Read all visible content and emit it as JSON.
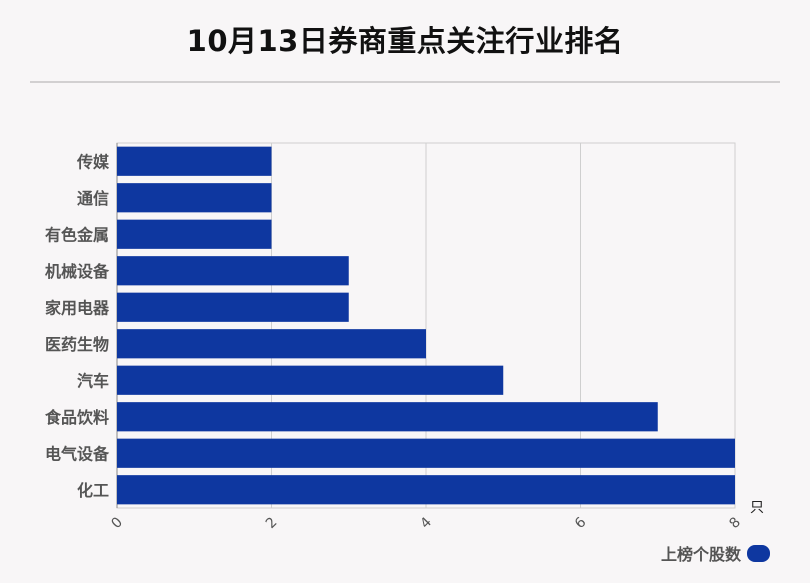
{
  "title": "10月13日券商重点关注行业排名",
  "chart_data": {
    "type": "bar",
    "orientation": "horizontal",
    "categories": [
      "传媒",
      "通信",
      "有色金属",
      "机械设备",
      "家用电器",
      "医药生物",
      "汽车",
      "食品饮料",
      "电气设备",
      "化工"
    ],
    "series": [
      {
        "name": "上榜个股数",
        "values": [
          2,
          2,
          2,
          3,
          3,
          4,
          5,
          7,
          8,
          8
        ]
      }
    ],
    "xlim": [
      0,
      8
    ],
    "xticks": [
      "0",
      "2",
      "4",
      "6",
      "8"
    ],
    "x_unit": "只",
    "grid": true,
    "legend_position": "bottom-right",
    "bar_color": "#0e37a0"
  }
}
